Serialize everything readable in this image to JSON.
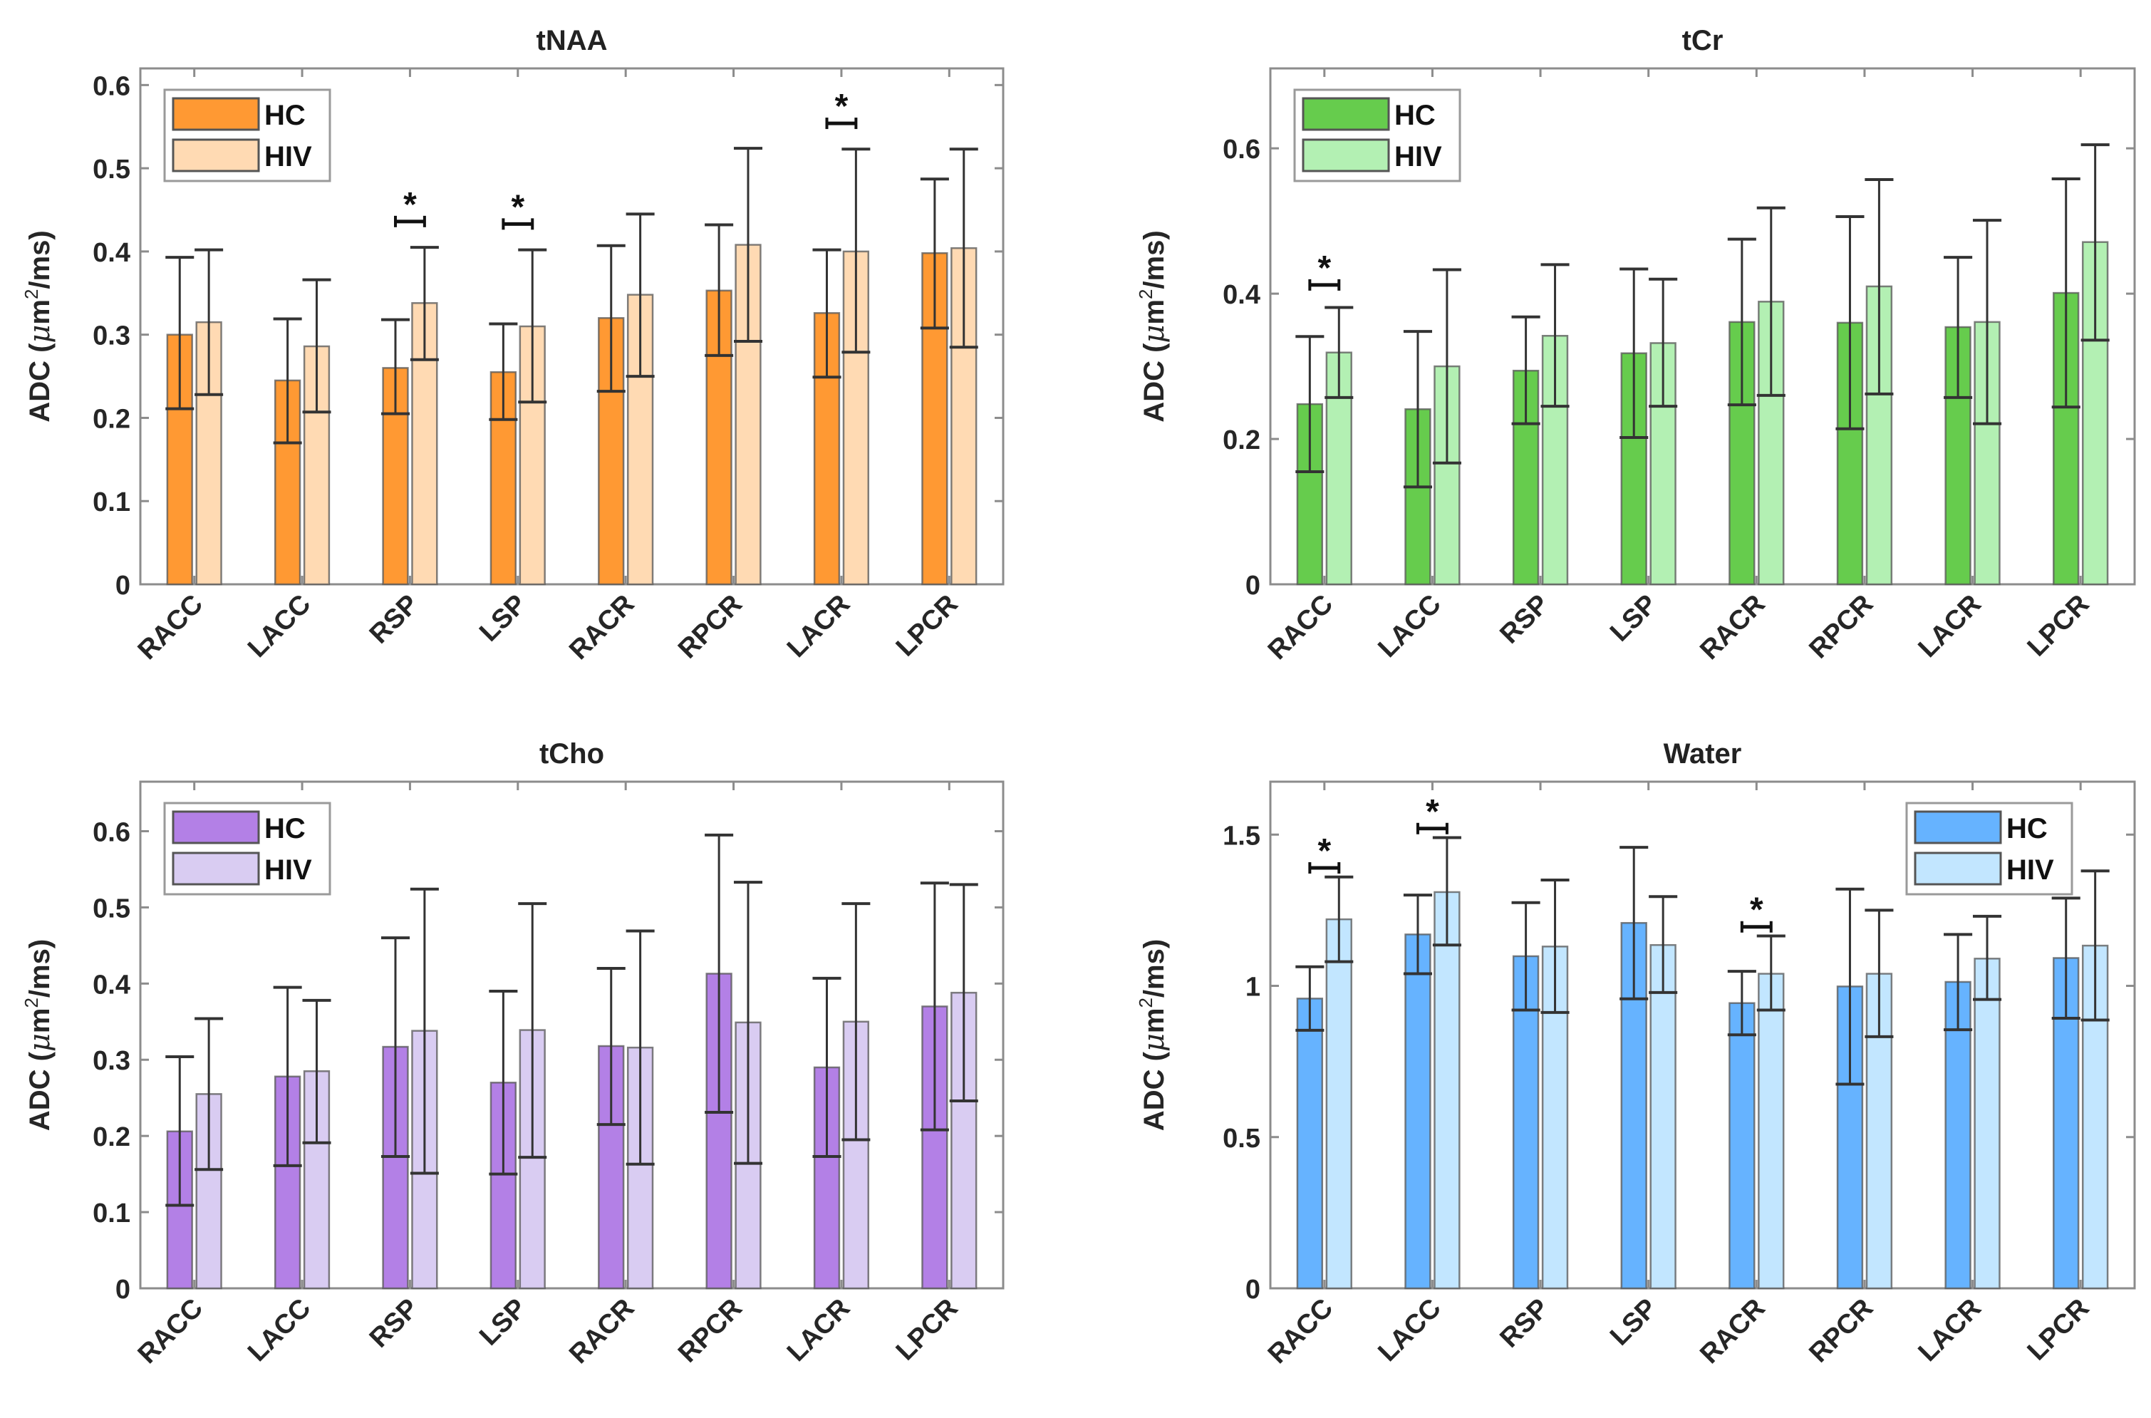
{
  "figure": {
    "panels": 4,
    "layout": "2x2"
  },
  "chart_data": [
    {
      "type": "bar",
      "title": "tNAA",
      "xlabel": "",
      "ylabel": "ADC (μm²/ms)",
      "ylabel_parts": {
        "prefix": "ADC (",
        "mu": "μ",
        "m": "m",
        "sup": "2",
        "suffix": "/ms)"
      },
      "ylim": [
        0,
        0.62
      ],
      "yticks": [
        0,
        0.1,
        0.2,
        0.3,
        0.4,
        0.5,
        0.6
      ],
      "ytick_labels": [
        "0",
        "0.1",
        "0.2",
        "0.3",
        "0.4",
        "0.5",
        "0.6"
      ],
      "grid": false,
      "legend": {
        "position": "top-left",
        "entries": [
          "HC",
          "HIV"
        ]
      },
      "categories": [
        "RACC",
        "LACC",
        "RSP",
        "LSP",
        "RACR",
        "RPCR",
        "LACR",
        "LPCR"
      ],
      "colors": {
        "HC": "#FF9933",
        "HIV": "#FFDAB3"
      },
      "series": [
        {
          "name": "HC",
          "values": [
            0.3,
            0.245,
            0.26,
            0.255,
            0.32,
            0.353,
            0.326,
            0.398
          ],
          "err_low": [
            0.211,
            0.17,
            0.205,
            0.198,
            0.232,
            0.275,
            0.249,
            0.308
          ],
          "err_high": [
            0.393,
            0.319,
            0.318,
            0.313,
            0.407,
            0.432,
            0.402,
            0.487
          ]
        },
        {
          "name": "HIV",
          "values": [
            0.315,
            0.286,
            0.338,
            0.31,
            0.348,
            0.408,
            0.4,
            0.404
          ],
          "err_low": [
            0.228,
            0.207,
            0.27,
            0.219,
            0.25,
            0.292,
            0.279,
            0.285
          ],
          "err_high": [
            0.402,
            0.366,
            0.405,
            0.402,
            0.445,
            0.524,
            0.523,
            0.523
          ]
        }
      ],
      "significance": [
        {
          "category": "RSP",
          "label": "*",
          "y": 0.436
        },
        {
          "category": "LSP",
          "label": "*",
          "y": 0.433
        },
        {
          "category": "LACR",
          "label": "*",
          "y": 0.554
        }
      ]
    },
    {
      "type": "bar",
      "title": "tCr",
      "xlabel": "",
      "ylabel": "ADC (μm²/ms)",
      "ylabel_parts": {
        "prefix": "ADC (",
        "mu": "μ",
        "m": "m",
        "sup": "2",
        "suffix": "/ms)"
      },
      "ylim": [
        0,
        0.71
      ],
      "yticks": [
        0,
        0.2,
        0.4,
        0.6
      ],
      "ytick_labels": [
        "0",
        "0.2",
        "0.4",
        "0.6"
      ],
      "grid": false,
      "legend": {
        "position": "top-left",
        "entries": [
          "HC",
          "HIV"
        ]
      },
      "categories": [
        "RACC",
        "LACC",
        "RSP",
        "LSP",
        "RACR",
        "RPCR",
        "LACR",
        "LPCR"
      ],
      "colors": {
        "HC": "#66CC4D",
        "HIV": "#B3F0B3"
      },
      "series": [
        {
          "name": "HC",
          "values": [
            0.248,
            0.241,
            0.294,
            0.318,
            0.361,
            0.36,
            0.354,
            0.401
          ],
          "err_low": [
            0.155,
            0.134,
            0.221,
            0.202,
            0.247,
            0.214,
            0.257,
            0.244
          ],
          "err_high": [
            0.341,
            0.348,
            0.368,
            0.434,
            0.475,
            0.506,
            0.45,
            0.558
          ]
        },
        {
          "name": "HIV",
          "values": [
            0.319,
            0.3,
            0.342,
            0.332,
            0.389,
            0.41,
            0.361,
            0.471
          ],
          "err_low": [
            0.257,
            0.167,
            0.245,
            0.245,
            0.26,
            0.262,
            0.221,
            0.336
          ],
          "err_high": [
            0.381,
            0.433,
            0.44,
            0.42,
            0.518,
            0.557,
            0.501,
            0.605
          ]
        }
      ],
      "significance": [
        {
          "category": "RACC",
          "label": "*",
          "y": 0.412
        }
      ]
    },
    {
      "type": "bar",
      "title": "tCho",
      "xlabel": "",
      "ylabel": "ADC (μm²/ms)",
      "ylabel_parts": {
        "prefix": "ADC (",
        "mu": "μ",
        "m": "m",
        "sup": "2",
        "suffix": "/ms)"
      },
      "ylim": [
        0,
        0.665
      ],
      "yticks": [
        0,
        0.1,
        0.2,
        0.3,
        0.4,
        0.5,
        0.6
      ],
      "ytick_labels": [
        "0",
        "0.1",
        "0.2",
        "0.3",
        "0.4",
        "0.5",
        "0.6"
      ],
      "grid": false,
      "legend": {
        "position": "top-left",
        "entries": [
          "HC",
          "HIV"
        ]
      },
      "categories": [
        "RACC",
        "LACC",
        "RSP",
        "LSP",
        "RACR",
        "RPCR",
        "LACR",
        "LPCR"
      ],
      "colors": {
        "HC": "#B380E6",
        "HIV": "#D9CCF2"
      },
      "series": [
        {
          "name": "HC",
          "values": [
            0.206,
            0.278,
            0.317,
            0.27,
            0.318,
            0.413,
            0.29,
            0.37
          ],
          "err_low": [
            0.109,
            0.161,
            0.173,
            0.15,
            0.215,
            0.231,
            0.173,
            0.208
          ],
          "err_high": [
            0.304,
            0.395,
            0.46,
            0.39,
            0.42,
            0.595,
            0.407,
            0.532
          ]
        },
        {
          "name": "HIV",
          "values": [
            0.255,
            0.285,
            0.338,
            0.339,
            0.316,
            0.349,
            0.35,
            0.388
          ],
          "err_low": [
            0.156,
            0.191,
            0.151,
            0.172,
            0.163,
            0.164,
            0.195,
            0.246
          ],
          "err_high": [
            0.354,
            0.378,
            0.524,
            0.505,
            0.469,
            0.533,
            0.505,
            0.53
          ]
        }
      ],
      "significance": []
    },
    {
      "type": "bar",
      "title": "Water",
      "xlabel": "",
      "ylabel": "ADC (μm²/ms)",
      "ylabel_parts": {
        "prefix": "ADC (",
        "mu": "μ",
        "m": "m",
        "sup": "2",
        "suffix": "/ms)"
      },
      "ylim": [
        0,
        1.675
      ],
      "yticks": [
        0,
        0.5,
        1,
        1.5
      ],
      "ytick_labels": [
        "0",
        "0.5",
        "1",
        "1.5"
      ],
      "grid": false,
      "legend": {
        "position": "top-right",
        "entries": [
          "HC",
          "HIV"
        ]
      },
      "categories": [
        "RACC",
        "LACC",
        "RSP",
        "LSP",
        "RACR",
        "RPCR",
        "LACR",
        "LPCR"
      ],
      "colors": {
        "HC": "#66B3FF",
        "HIV": "#C2E6FF"
      },
      "series": [
        {
          "name": "HC",
          "values": [
            0.958,
            1.17,
            1.098,
            1.208,
            0.943,
            0.998,
            1.013,
            1.092
          ],
          "err_low": [
            0.853,
            1.04,
            0.92,
            0.957,
            0.838,
            0.675,
            0.855,
            0.893
          ],
          "err_high": [
            1.063,
            1.3,
            1.275,
            1.458,
            1.048,
            1.32,
            1.17,
            1.29
          ]
        },
        {
          "name": "HIV",
          "values": [
            1.22,
            1.31,
            1.13,
            1.135,
            1.04,
            1.04,
            1.09,
            1.133
          ],
          "err_low": [
            1.08,
            1.135,
            0.912,
            0.978,
            0.92,
            0.832,
            0.955,
            0.887
          ],
          "err_high": [
            1.36,
            1.49,
            1.35,
            1.295,
            1.165,
            1.25,
            1.23,
            1.38
          ]
        }
      ],
      "significance": [
        {
          "category": "RACC",
          "label": "*",
          "y": 1.39
        },
        {
          "category": "LACC",
          "label": "*",
          "y": 1.52
        },
        {
          "category": "RACR",
          "label": "*",
          "y": 1.195
        }
      ]
    }
  ]
}
